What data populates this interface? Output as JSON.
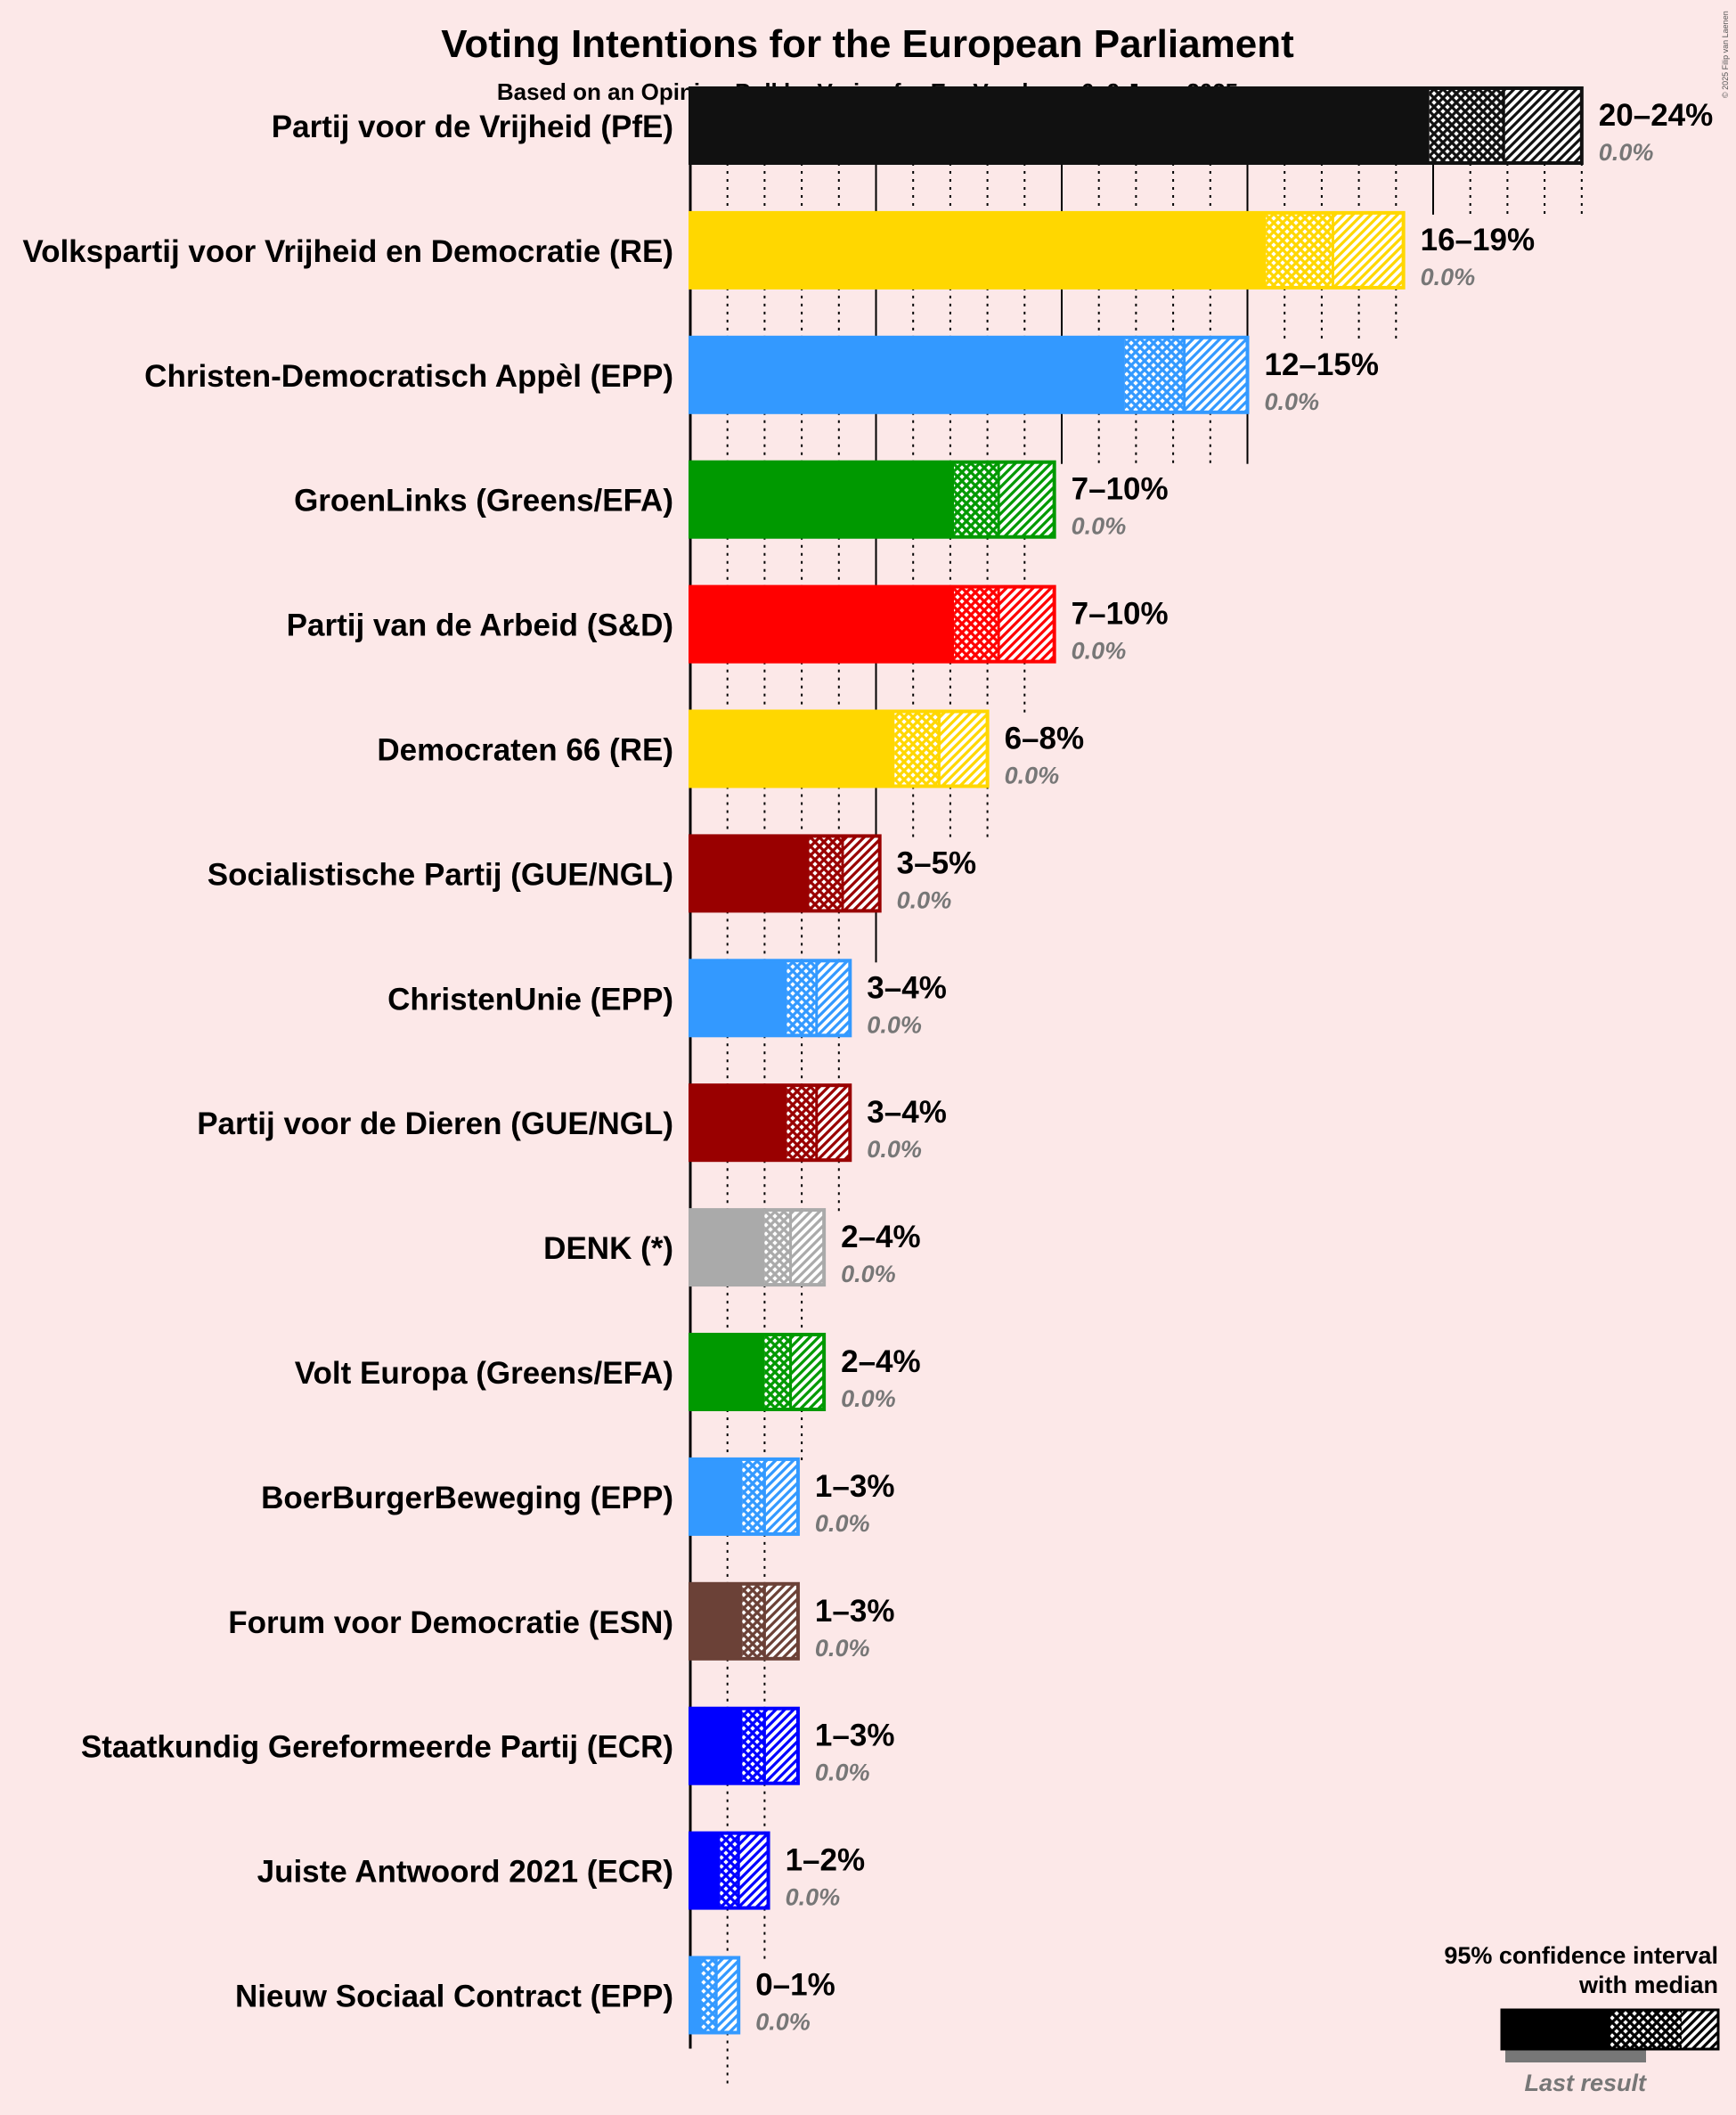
{
  "title": "Voting Intentions for the European Parliament",
  "subtitle": "Based on an Opinion Poll by Verian for EenVandaag, 6–9 June 2025",
  "copyright": "© 2025 Filip van Laenen",
  "legend": {
    "line1": "95% confidence interval",
    "line2": "with median",
    "last_result": "Last result"
  },
  "chart_data": {
    "type": "bar",
    "orientation": "horizontal",
    "title": "Voting Intentions for the European Parliament",
    "subtitle": "Based on an Opinion Poll by Verian for EenVandaag, 6–9 June 2025",
    "unit": "%",
    "xlim": [
      0,
      25
    ],
    "parties": [
      {
        "name": "Partij voor de Vrijheid (PfE)",
        "color": "#111111",
        "low": 19.9,
        "median": 21.9,
        "high": 24.0,
        "range_label": "20–24%",
        "last_result_label": "0.0%",
        "last_result": 0.0
      },
      {
        "name": "Volkspartij voor Vrijheid en Democratie (RE)",
        "color": "#FFD700",
        "low": 15.5,
        "median": 17.3,
        "high": 19.2,
        "range_label": "16–19%",
        "last_result_label": "0.0%",
        "last_result": 0.0
      },
      {
        "name": "Christen-Democratisch Appèl (EPP)",
        "color": "#3399FF",
        "low": 11.7,
        "median": 13.3,
        "high": 15.0,
        "range_label": "12–15%",
        "last_result_label": "0.0%",
        "last_result": 0.0
      },
      {
        "name": "GroenLinks (Greens/EFA)",
        "color": "#009900",
        "low": 7.1,
        "median": 8.3,
        "high": 9.8,
        "range_label": "7–10%",
        "last_result_label": "0.0%",
        "last_result": 0.0
      },
      {
        "name": "Partij van de Arbeid (S&D)",
        "color": "#FF0000",
        "low": 7.1,
        "median": 8.3,
        "high": 9.8,
        "range_label": "7–10%",
        "last_result_label": "0.0%",
        "last_result": 0.0
      },
      {
        "name": "Democraten 66 (RE)",
        "color": "#FFD700",
        "low": 5.5,
        "median": 6.7,
        "high": 8.0,
        "range_label": "6–8%",
        "last_result_label": "0.0%",
        "last_result": 0.0
      },
      {
        "name": "Socialistische Partij (GUE/NGL)",
        "color": "#990000",
        "low": 3.2,
        "median": 4.1,
        "high": 5.1,
        "range_label": "3–5%",
        "last_result_label": "0.0%",
        "last_result": 0.0
      },
      {
        "name": "ChristenUnie (EPP)",
        "color": "#3399FF",
        "low": 2.6,
        "median": 3.4,
        "high": 4.3,
        "range_label": "3–4%",
        "last_result_label": "0.0%",
        "last_result": 0.0
      },
      {
        "name": "Partij voor de Dieren (GUE/NGL)",
        "color": "#990000",
        "low": 2.6,
        "median": 3.4,
        "high": 4.3,
        "range_label": "3–4%",
        "last_result_label": "0.0%",
        "last_result": 0.0
      },
      {
        "name": "DENK (*)",
        "color": "#AAAAAA",
        "low": 2.0,
        "median": 2.7,
        "high": 3.6,
        "range_label": "2–4%",
        "last_result_label": "0.0%",
        "last_result": 0.0
      },
      {
        "name": "Volt Europa (Greens/EFA)",
        "color": "#009900",
        "low": 2.0,
        "median": 2.7,
        "high": 3.6,
        "range_label": "2–4%",
        "last_result_label": "0.0%",
        "last_result": 0.0
      },
      {
        "name": "BoerBurgerBeweging (EPP)",
        "color": "#3399FF",
        "low": 1.4,
        "median": 2.0,
        "high": 2.9,
        "range_label": "1–3%",
        "last_result_label": "0.0%",
        "last_result": 0.0
      },
      {
        "name": "Forum voor Democratie (ESN)",
        "color": "#6B4137",
        "low": 1.4,
        "median": 2.0,
        "high": 2.9,
        "range_label": "1–3%",
        "last_result_label": "0.0%",
        "last_result": 0.0
      },
      {
        "name": "Staatkundig Gereformeerde Partij (ECR)",
        "color": "#0000FF",
        "low": 1.4,
        "median": 2.0,
        "high": 2.9,
        "range_label": "1–3%",
        "last_result_label": "0.0%",
        "last_result": 0.0
      },
      {
        "name": "Juiste Antwoord 2021 (ECR)",
        "color": "#0000FF",
        "low": 0.8,
        "median": 1.3,
        "high": 2.1,
        "range_label": "1–2%",
        "last_result_label": "0.0%",
        "last_result": 0.0
      },
      {
        "name": "Nieuw Sociaal Contract (EPP)",
        "color": "#3399FF",
        "low": 0.3,
        "median": 0.7,
        "high": 1.3,
        "range_label": "0–1%",
        "last_result_label": "0.0%",
        "last_result": 0.0
      }
    ]
  }
}
